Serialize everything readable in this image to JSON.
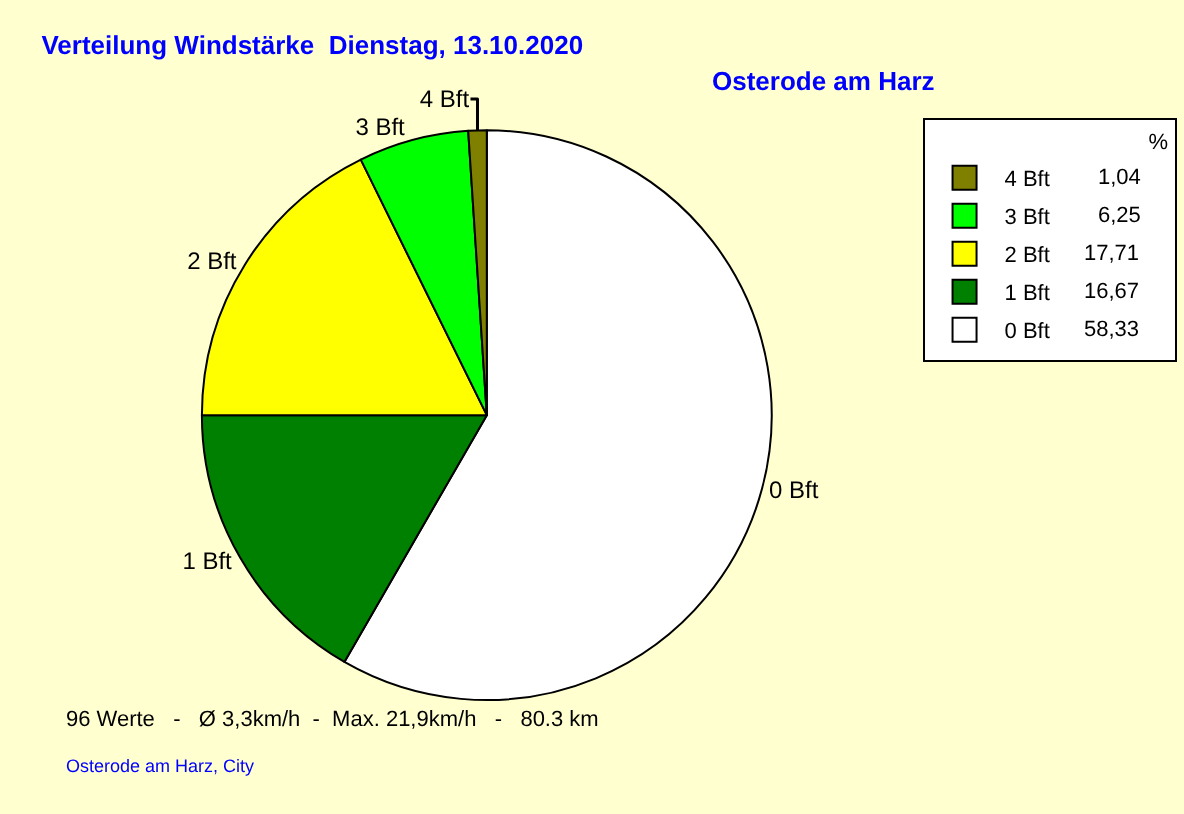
{
  "chart_data": {
    "type": "pie",
    "title": "Verteilung Windstärke  Dienstag, 13.10.2020",
    "subtitle": "Osterode am Harz",
    "categories": [
      "0 Bft",
      "1 Bft",
      "2 Bft",
      "3 Bft",
      "4 Bft"
    ],
    "values": [
      58.33,
      16.67,
      17.71,
      6.25,
      1.04
    ],
    "value_labels": [
      "58,33",
      "16,67",
      "17,71",
      "6,25",
      "1,04"
    ],
    "colors": [
      "#ffffff",
      "#008000",
      "#ffff00",
      "#00ff00",
      "#808000"
    ],
    "legend": "top right",
    "legend_title": "%",
    "annotations": [
      "96 Werte   -   Ø 3,3km/h  -  Max. 21,9km/h   -   80.3 km",
      "Osterode am Harz, City"
    ]
  }
}
